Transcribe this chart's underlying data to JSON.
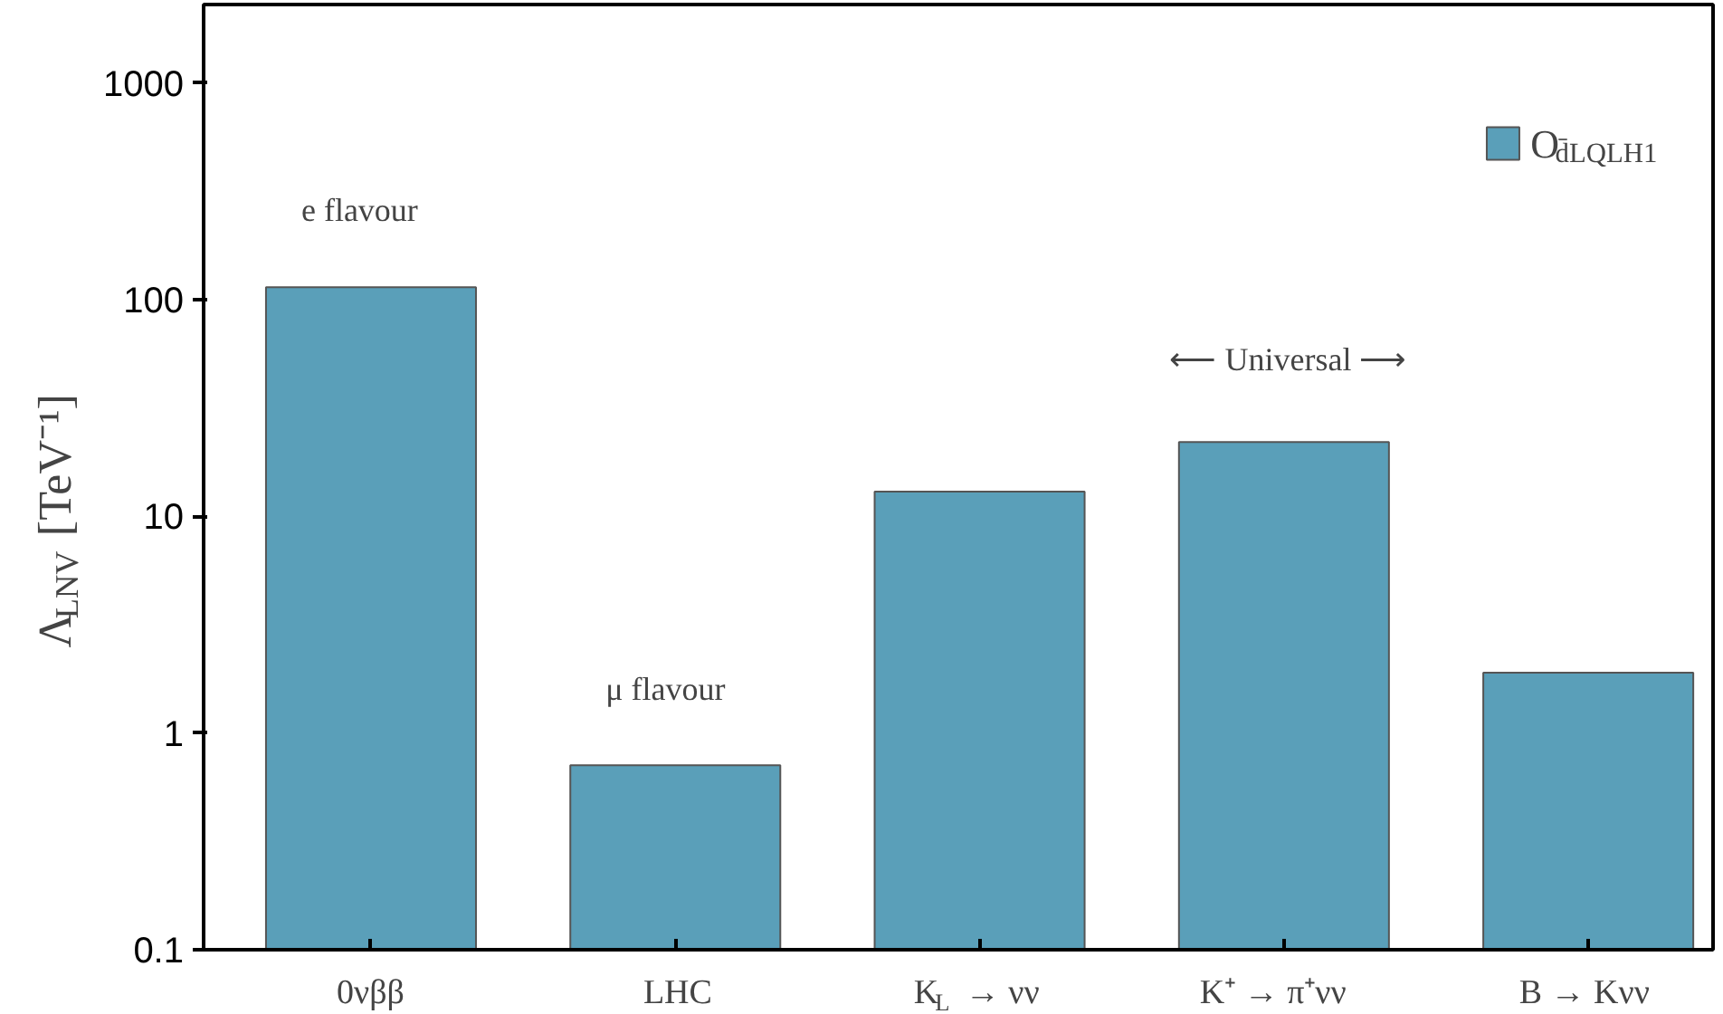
{
  "chart_data": {
    "type": "bar",
    "ylabel": "Λ$_{LNV}$ [TeV⁻¹]",
    "categories": [
      "0νββ",
      "LHC",
      "K$_{L}$ → νν",
      "K⁺ → π⁺νν",
      "B → Kνν"
    ],
    "series": [
      {
        "name": "O$_{d̄LQLH1}$",
        "color": "#5a9fb9",
        "values": [
          114,
          0.71,
          13,
          22,
          1.9
        ]
      }
    ],
    "log": true,
    "ylim": [
      0.1,
      2300
    ],
    "yticks": [
      0.1,
      1,
      10,
      100,
      1000
    ],
    "grid": false,
    "legend": "top right",
    "annotations": [
      "e flavour",
      "μ flavour",
      "⟵ Universal ⟶"
    ]
  }
}
